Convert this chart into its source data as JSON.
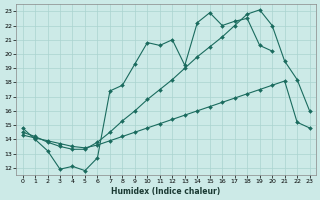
{
  "xlabel": "Humidex (Indice chaleur)",
  "background_color": "#cceae7",
  "grid_color": "#aad4d0",
  "line_color": "#1a6b5e",
  "line1_x": [
    0,
    1,
    2,
    3,
    4,
    5,
    6,
    7,
    8,
    9,
    10,
    11,
    12,
    13,
    14,
    15,
    16,
    17,
    18,
    19,
    20
  ],
  "line1_y": [
    14.8,
    14.0,
    13.2,
    11.9,
    12.1,
    11.8,
    12.7,
    17.4,
    17.8,
    19.3,
    20.8,
    20.6,
    21.0,
    19.2,
    22.2,
    22.9,
    22.0,
    22.3,
    22.5,
    20.6,
    20.2
  ],
  "line2_x": [
    0,
    1,
    2,
    3,
    4,
    5,
    6,
    7,
    8,
    9,
    10,
    11,
    12,
    13,
    14,
    15,
    16,
    17,
    18,
    19,
    20,
    21,
    22,
    23
  ],
  "line2_y": [
    14.5,
    14.2,
    13.8,
    13.5,
    13.3,
    13.3,
    13.8,
    14.5,
    15.3,
    16.0,
    16.8,
    17.5,
    18.2,
    19.0,
    19.8,
    20.5,
    21.2,
    22.0,
    22.8,
    23.1,
    22.0,
    19.5,
    18.2,
    16.0
  ],
  "line3_x": [
    0,
    1,
    2,
    3,
    4,
    5,
    6,
    7,
    8,
    9,
    10,
    11,
    12,
    13,
    14,
    15,
    16,
    17,
    18,
    19,
    20,
    21,
    22,
    23
  ],
  "line3_y": [
    14.3,
    14.1,
    13.9,
    13.7,
    13.5,
    13.4,
    13.6,
    13.9,
    14.2,
    14.5,
    14.8,
    15.1,
    15.4,
    15.7,
    16.0,
    16.3,
    16.6,
    16.9,
    17.2,
    17.5,
    17.8,
    18.1,
    15.2,
    14.8
  ],
  "xlim": [
    -0.5,
    23.5
  ],
  "ylim": [
    11.5,
    23.5
  ],
  "xticks": [
    0,
    1,
    2,
    3,
    4,
    5,
    6,
    7,
    8,
    9,
    10,
    11,
    12,
    13,
    14,
    15,
    16,
    17,
    18,
    19,
    20,
    21,
    22,
    23
  ],
  "yticks": [
    12,
    13,
    14,
    15,
    16,
    17,
    18,
    19,
    20,
    21,
    22,
    23
  ]
}
